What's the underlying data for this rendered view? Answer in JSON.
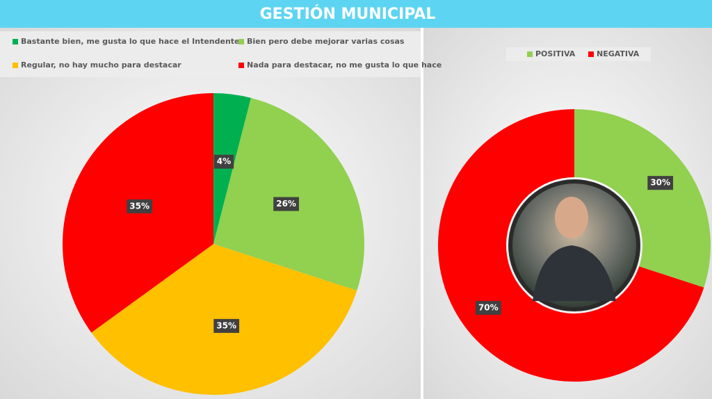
{
  "title": "GESTIÓN MUNICIPAL",
  "chart_data": [
    {
      "type": "pie",
      "categories": [
        "Bastante bien, me gusta lo que hace el Intendente",
        "Bien pero debe mejorar varias cosas",
        "Regular, no hay mucho para destacar",
        "Nada para destacar, no me gusta lo que hace"
      ],
      "values": [
        4,
        26,
        35,
        35
      ],
      "value_labels": [
        "4%",
        "26%",
        "35%",
        "35%"
      ],
      "colors": [
        "#00b050",
        "#92d050",
        "#ffc000",
        "#ff0000"
      ]
    },
    {
      "type": "donut",
      "categories": [
        "POSITIVA",
        "NEGATIVA"
      ],
      "values": [
        30,
        70
      ],
      "value_labels": [
        "30%",
        "70%"
      ],
      "colors": [
        "#92d050",
        "#ff0000"
      ]
    }
  ]
}
